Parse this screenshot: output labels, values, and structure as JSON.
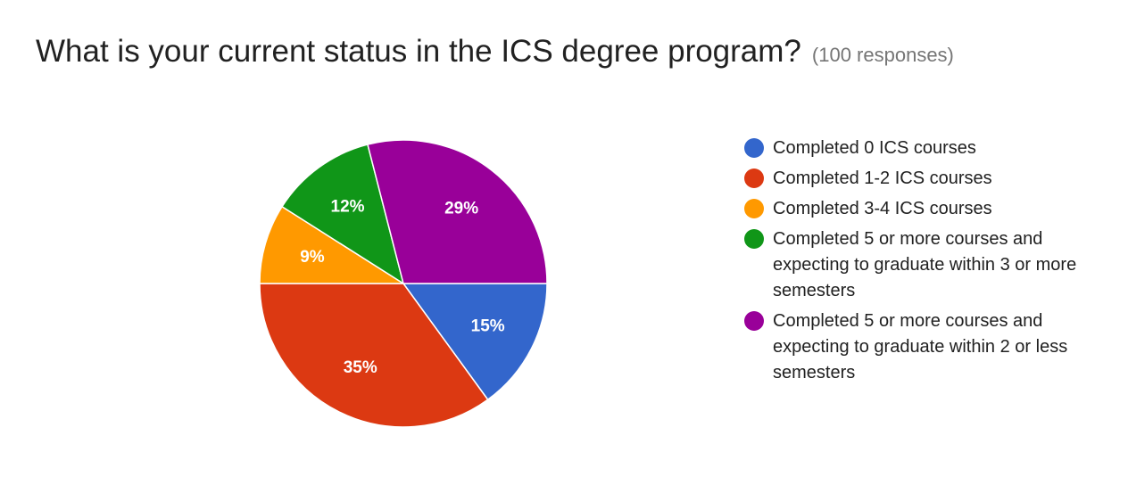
{
  "header": {
    "title": "What is your current status in the ICS degree program?",
    "subtitle": "(100 responses)"
  },
  "chart_data": {
    "type": "pie",
    "title": "What is your current status in the ICS degree program?",
    "subtitle": "(100 responses)",
    "legend_position": "right",
    "categories": [
      "Completed 0 ICS courses",
      "Completed 1-2 ICS courses",
      "Completed 3-4 ICS courses",
      "Completed 5 or more courses and expecting to graduate within 3 or more semesters",
      "Completed 5 or more courses and expecting to graduate within 2 or less semesters"
    ],
    "values": [
      15,
      35,
      9,
      12,
      29
    ],
    "labels": [
      "15%",
      "35%",
      "9%",
      "12%",
      "29%"
    ],
    "colors": [
      "#3366cc",
      "#dc3912",
      "#ff9900",
      "#109618",
      "#990099"
    ]
  }
}
